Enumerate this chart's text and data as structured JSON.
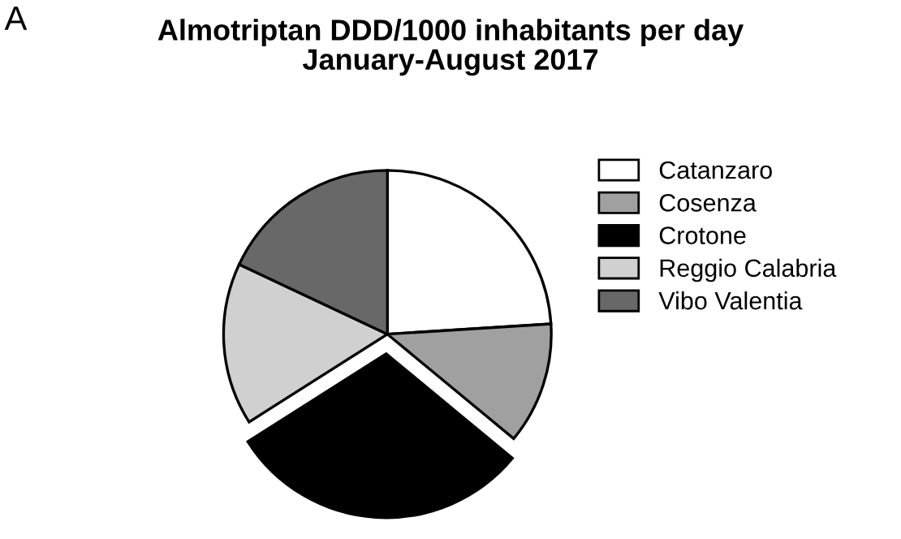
{
  "chart_data": {
    "type": "pie",
    "title": "Almotriptan DDD/1000 inhabitants per day\nJanuary-August 2017",
    "categories": [
      "Catanzaro",
      "Cosenza",
      "Crotone",
      "Reggio Calabria",
      "Vibo Valentia"
    ],
    "values": [
      24,
      12,
      30,
      16,
      18
    ],
    "colors": [
      "#ffffff",
      "#a0a0a0",
      "#000000",
      "#d0d0d0",
      "#686868"
    ],
    "legend": "right",
    "annotations": [
      "A"
    ]
  }
}
